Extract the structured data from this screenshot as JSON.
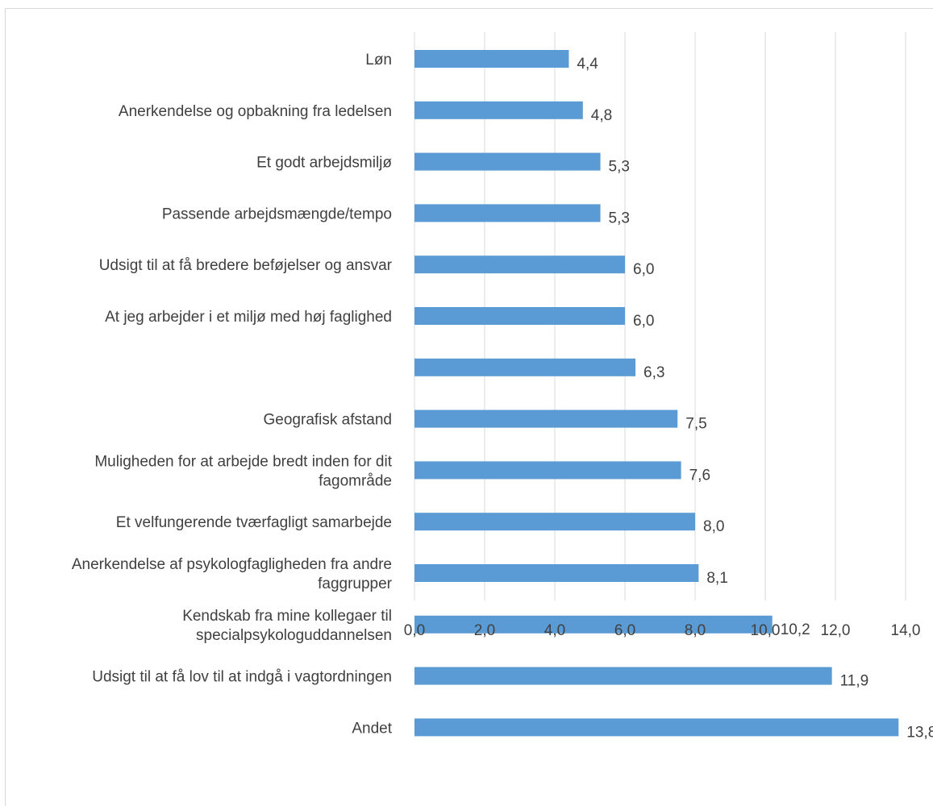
{
  "chart_data": {
    "type": "bar",
    "orientation": "horizontal",
    "title": "",
    "xlabel": "",
    "ylabel": "",
    "xlim": [
      0,
      14
    ],
    "x_tick_labels": [
      "0,0",
      "2,0",
      "4,0",
      "6,0",
      "8,0",
      "10,0",
      "12,0",
      "14,0"
    ],
    "grid": true,
    "legend": "none",
    "bar_color": "#5b9bd5",
    "categories": [
      [
        "Løn"
      ],
      [
        "Anerkendelse og opbakning fra ledelsen"
      ],
      [
        "Et godt arbejdsmiljø"
      ],
      [
        "Passende arbejdsmængde/tempo"
      ],
      [
        "Udsigt til at få bredere beføjelser og ansvar"
      ],
      [
        "At jeg arbejder i et miljø med høj faglighed"
      ],
      [],
      [
        "Geografisk afstand"
      ],
      [
        "Muligheden for at arbejde bredt inden for dit",
        "fagområde"
      ],
      [
        "Et velfungerende tværfagligt samarbejde"
      ],
      [
        "Anerkendelse af psykologfagligheden fra andre",
        "faggrupper"
      ],
      [
        "Kendskab fra mine kollegaer til",
        "specialpsykologuddannelsen"
      ],
      [
        "Udsigt til at få lov til at indgå i vagtordningen"
      ],
      [
        "Andet"
      ]
    ],
    "values": [
      4.4,
      4.8,
      5.3,
      5.3,
      6.0,
      6.0,
      6.3,
      7.5,
      7.6,
      8.0,
      8.1,
      10.2,
      11.9,
      13.8
    ],
    "value_labels": [
      "4,4",
      "4,8",
      "5,3",
      "5,3",
      "6,0",
      "6,0",
      "6,3",
      "7,5",
      "7,6",
      "8,0",
      "8,1",
      "10,2",
      "11,9",
      "13,8"
    ]
  }
}
